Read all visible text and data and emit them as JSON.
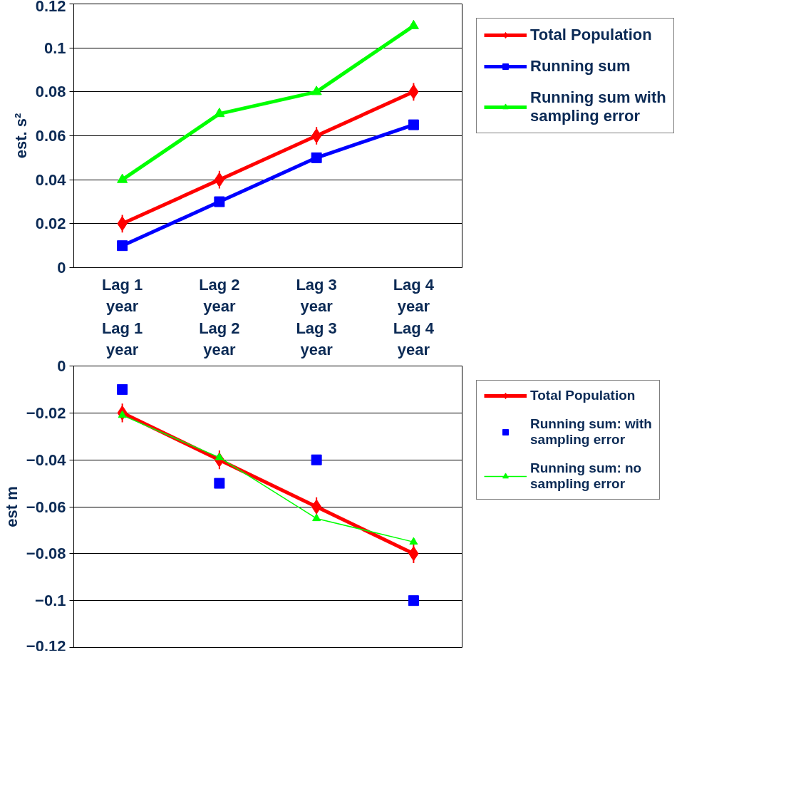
{
  "chart_data": [
    {
      "type": "line",
      "ylabel": "est. s²",
      "categories": [
        "Lag 1\nyear",
        "Lag 2\nyear",
        "Lag 3\nyear",
        "Lag 4\nyear"
      ],
      "ylim": [
        0,
        0.12
      ],
      "yticks": [
        0,
        0.02,
        0.04,
        0.06,
        0.08,
        0.1,
        0.12
      ],
      "grid": "y",
      "legend": "right",
      "series": [
        {
          "name": "Total Population",
          "color": "#ff0000",
          "marker": "diamond",
          "values": [
            0.02,
            0.04,
            0.06,
            0.08
          ],
          "errors": [
            0.004,
            0.004,
            0.004,
            0.004
          ]
        },
        {
          "name": "Running sum",
          "color": "#0000ff",
          "marker": "square",
          "values": [
            0.01,
            0.03,
            0.05,
            0.065
          ]
        },
        {
          "name": "Running sum with\nsampling error",
          "color": "#00ff00",
          "marker": "triangle",
          "values": [
            0.04,
            0.07,
            0.08,
            0.11
          ]
        }
      ]
    },
    {
      "type": "line",
      "ylabel": "est m",
      "categories": [
        "Lag 1\nyear",
        "Lag 2\nyear",
        "Lag 3\nyear",
        "Lag 4\nyear"
      ],
      "ylim": [
        -0.12,
        0
      ],
      "yticks": [
        -0.12,
        -0.1,
        -0.08,
        -0.06,
        -0.04,
        -0.02,
        0
      ],
      "grid": "y",
      "legend": "right",
      "series": [
        {
          "name": "Total Population",
          "color": "#ff0000",
          "marker": "diamond",
          "values": [
            -0.02,
            -0.04,
            -0.06,
            -0.08
          ],
          "errors": [
            0.004,
            0.004,
            0.004,
            0.004
          ]
        },
        {
          "name": "Running sum: with\nsampling error",
          "type": "scatter",
          "color": "#0000ff",
          "marker": "square",
          "values": [
            -0.01,
            -0.05,
            -0.04,
            -0.1
          ]
        },
        {
          "name": "Running sum: no\nsampling error",
          "color": "#00ff00",
          "marker": "triangle",
          "values": [
            -0.021,
            -0.039,
            -0.065,
            -0.075
          ]
        }
      ]
    }
  ]
}
